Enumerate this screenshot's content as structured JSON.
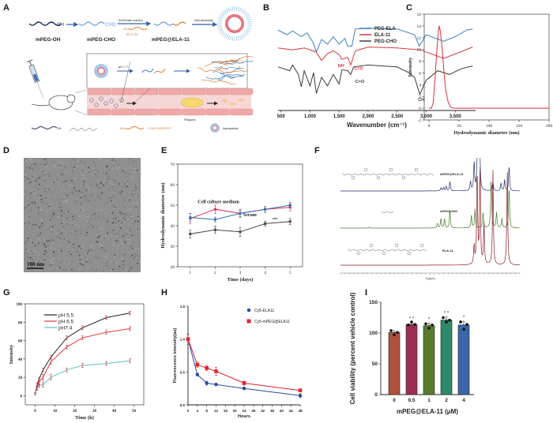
{
  "figure": {
    "panel_labels": [
      "A",
      "B",
      "C",
      "D",
      "E",
      "F",
      "G",
      "H",
      "I"
    ]
  },
  "panel_a": {
    "oh": "OH",
    "mpeg_oh": "mPEG-OH",
    "cho": "CHO",
    "mpeg_cho": "mPEG-CHO",
    "schiff": "Schiff base reaction",
    "nh2": "NH₂",
    "ela11": "ELA-11",
    "mpeg_ela11": "mPEG@ELA-11",
    "self_assembly": "Self-assembly",
    "ph": "pH < 7",
    "plaques": "Plaques",
    "legend_oh": "OH :",
    "legend_nh2": "NH₂",
    "legend_seq": ": CMPLHSRVPFP",
    "legend_np": ": Nanoparticle",
    "colors": {
      "peg": "#2f5fa8",
      "ela": "#e07a2e",
      "vessel": "#f2b8b8",
      "plaque": "#f5d76e"
    }
  },
  "panel_d": {
    "scale_bar": "100 nm"
  },
  "panel_f": {
    "xlabel": "δ (ppm)"
  },
  "chart_data": [
    {
      "panel": "B",
      "type": "line",
      "xlabel": "Wavenumber (cm⁻¹)",
      "xlim": [
        450,
        3850
      ],
      "ylim": [
        0,
        10
      ],
      "xticks": [
        500,
        1000,
        1500,
        2000,
        2500,
        3000,
        3500
      ],
      "xtick_labels": [
        "500",
        "1,000",
        "1,500",
        "2,000",
        "2,500",
        "3,000",
        "3,500"
      ],
      "legend_position": "top-right",
      "series": [
        {
          "name": "PEG-ELA",
          "color": "#3f7fc1",
          "points": [
            [
              450,
              8.5
            ],
            [
              600,
              8
            ],
            [
              700,
              8.4
            ],
            [
              850,
              7.8
            ],
            [
              950,
              8.2
            ],
            [
              1050,
              7.2
            ],
            [
              1110,
              6.2
            ],
            [
              1200,
              7.5
            ],
            [
              1300,
              7
            ],
            [
              1400,
              7.8
            ],
            [
              1500,
              7
            ],
            [
              1600,
              7.6
            ],
            [
              1650,
              6.8
            ],
            [
              1720,
              6.8
            ],
            [
              1780,
              8.6
            ],
            [
              2000,
              8.7
            ],
            [
              2500,
              8.6
            ],
            [
              2800,
              8.0
            ],
            [
              2880,
              6.8
            ],
            [
              3000,
              8
            ],
            [
              3300,
              7.3
            ],
            [
              3500,
              7.8
            ],
            [
              3700,
              8.5
            ],
            [
              3800,
              8.6
            ]
          ]
        },
        {
          "name": "ELA-11",
          "color": "#d9363e",
          "points": [
            [
              450,
              6.6
            ],
            [
              700,
              6.4
            ],
            [
              900,
              6.6
            ],
            [
              1100,
              6.2
            ],
            [
              1200,
              5.3
            ],
            [
              1300,
              6
            ],
            [
              1400,
              6.3
            ],
            [
              1500,
              5.9
            ],
            [
              1550,
              5.4
            ],
            [
              1650,
              5.6
            ],
            [
              1700,
              4.8
            ],
            [
              1780,
              6.3
            ],
            [
              2000,
              6.7
            ],
            [
              2500,
              6.6
            ],
            [
              2900,
              6.4
            ],
            [
              3300,
              5.5
            ],
            [
              3600,
              6.2
            ],
            [
              3800,
              6.7
            ]
          ]
        },
        {
          "name": "PEG-CHO",
          "color": "#3a3a3a",
          "points": [
            [
              450,
              4.6
            ],
            [
              650,
              4.2
            ],
            [
              700,
              4.8
            ],
            [
              800,
              3.8
            ],
            [
              850,
              2.5
            ],
            [
              900,
              4.2
            ],
            [
              1000,
              2.6
            ],
            [
              1060,
              4
            ],
            [
              1110,
              1.8
            ],
            [
              1200,
              3.5
            ],
            [
              1300,
              2.6
            ],
            [
              1400,
              3.8
            ],
            [
              1500,
              2.8
            ],
            [
              1550,
              4.3
            ],
            [
              1650,
              4.2
            ],
            [
              1700,
              3.8
            ],
            [
              1750,
              4.6
            ],
            [
              2000,
              4.8
            ],
            [
              2500,
              4.6
            ],
            [
              2700,
              4
            ],
            [
              2800,
              3.5
            ],
            [
              2890,
              1.7
            ],
            [
              3000,
              3.2
            ],
            [
              3200,
              4.2
            ],
            [
              3400,
              3.8
            ],
            [
              3600,
              4.4
            ],
            [
              3800,
              4.7
            ]
          ]
        }
      ],
      "annotations": [
        {
          "text": "NH",
          "x": 1480,
          "y": 4.6,
          "color": "#d9363e"
        },
        {
          "text": "C=O",
          "x": 1760,
          "y": 4.3,
          "color": "#d9363e"
        },
        {
          "text": "C=O",
          "x": 1780,
          "y": 2.9,
          "color": "#3a3a3a"
        },
        {
          "text": "CH",
          "x": 2860,
          "y": 1.0,
          "color": "#3a3a3a"
        }
      ]
    },
    {
      "panel": "C",
      "type": "line",
      "xlabel": "Hydrodynamic diameter (nm)",
      "ylabel": "Intensity",
      "xlim": [
        -8,
        200
      ],
      "ylim": [
        -2,
        16
      ],
      "xticks": [
        0,
        50,
        100,
        150,
        200
      ],
      "xtick_labels": [
        "0",
        "50",
        "100",
        "150",
        "200"
      ],
      "yticks": [
        -2,
        0,
        2,
        4,
        6,
        8,
        10,
        12,
        14,
        16
      ],
      "ytick_labels": [
        "-2",
        "0",
        "2",
        "4",
        "6",
        "8",
        "10",
        "12",
        "14",
        "16"
      ],
      "series": [
        {
          "color": "#e0303a",
          "points": [
            [
              0,
              0
            ],
            [
              4,
              0
            ],
            [
              7,
              1
            ],
            [
              10,
              5
            ],
            [
              13,
              10
            ],
            [
              16,
              13.5
            ],
            [
              17,
              14
            ],
            [
              19,
              13
            ],
            [
              22,
              10
            ],
            [
              25,
              6
            ],
            [
              28,
              3
            ],
            [
              32,
              1
            ],
            [
              36,
              0.2
            ],
            [
              42,
              0
            ],
            [
              100,
              0
            ],
            [
              200,
              0
            ]
          ]
        }
      ]
    },
    {
      "panel": "E",
      "type": "line",
      "xlabel": "Time (days)",
      "ylabel": "Hydrodynamic diameter (nm)",
      "xlim": [
        0.5,
        5.5
      ],
      "ylim": [
        20,
        70
      ],
      "xticks": [
        1,
        2,
        3,
        4,
        5
      ],
      "xtick_labels": [
        "1",
        "2",
        "3",
        "4",
        "5"
      ],
      "yticks": [
        20,
        30,
        40,
        50,
        60,
        70
      ],
      "ytick_labels": [
        "20",
        "30",
        "40",
        "50",
        "60",
        "70"
      ],
      "x": [
        1,
        2,
        3,
        4,
        5
      ],
      "series": [
        {
          "name": "Cell culture medium",
          "color": "#e0304a",
          "values": [
            43.5,
            48,
            46,
            48,
            49
          ],
          "errors": [
            2.5,
            2,
            2,
            1.5,
            1.8
          ],
          "label_at": [
            1.3,
            51
          ]
        },
        {
          "name": "Serum",
          "color": "#2f6fb8",
          "values": [
            44,
            43,
            46,
            48,
            50
          ],
          "errors": [
            2,
            1.2,
            1.5,
            1.5,
            1.5
          ],
          "label_at": [
            3.12,
            44.6
          ]
        },
        {
          "name": "PBS",
          "color": "#444444",
          "values": [
            36,
            38,
            37,
            41,
            42
          ],
          "errors": [
            2,
            1.8,
            2.2,
            1.2,
            1.5
          ],
          "label_at": [
            4.3,
            43
          ]
        }
      ]
    },
    {
      "panel": "G",
      "type": "line",
      "xlabel": "Time (h)",
      "ylabel": "Intensity",
      "xlim": [
        -5,
        55
      ],
      "ylim": [
        -10,
        100
      ],
      "xticks": [
        0,
        10,
        20,
        30,
        40,
        50
      ],
      "xtick_labels": [
        "0",
        "10",
        "20",
        "30",
        "40",
        "50"
      ],
      "yticks": [
        0,
        20,
        40,
        60,
        80,
        100
      ],
      "ytick_labels": [
        "0",
        "20",
        "40",
        "60",
        "80",
        "100"
      ],
      "legend_position": "top-left",
      "x": [
        0,
        1,
        2,
        4,
        8,
        16,
        24,
        36,
        48
      ],
      "series": [
        {
          "name": "pH 5.5",
          "color": "#222222",
          "values": [
            2,
            12,
            18,
            28,
            42,
            63,
            74,
            85,
            90
          ],
          "errors": [
            1,
            2,
            2,
            2,
            2,
            2,
            2,
            2,
            2
          ]
        },
        {
          "name": "pH 6.5",
          "color": "#e03a3a",
          "values": [
            2,
            10,
            15,
            20,
            37,
            53,
            63,
            69,
            73
          ],
          "errors": [
            1,
            4,
            3,
            3,
            3,
            2,
            2,
            2,
            2
          ]
        },
        {
          "name": "pH7.4",
          "color": "#5bc0c8",
          "values": [
            2,
            8,
            11,
            12,
            20,
            28,
            33,
            35,
            38
          ],
          "errors": [
            1,
            2,
            2,
            3,
            3,
            2,
            2,
            2,
            2
          ]
        }
      ]
    },
    {
      "panel": "H",
      "type": "line",
      "xlabel": "Hours",
      "ylabel": "Fluorescence intensity(au)",
      "xlim": [
        0,
        48
      ],
      "ylim": [
        0,
        1.5
      ],
      "xticks": [
        0,
        4,
        8,
        12,
        16,
        20,
        24,
        28,
        32,
        36,
        40,
        44,
        48
      ],
      "xtick_labels": [
        "0",
        "4",
        "8",
        "12",
        "16",
        "20",
        "24",
        "28",
        "32",
        "36",
        "40",
        "44",
        "48"
      ],
      "yticks": [
        0,
        0.5,
        1.0,
        1.5
      ],
      "ytick_labels": [
        "0.0",
        "0.5",
        "1.0",
        "1.5"
      ],
      "legend_position": "top-right",
      "x": [
        0,
        4,
        8,
        12,
        24,
        48
      ],
      "series": [
        {
          "name": "Cy5-ELA11",
          "color": "#2b4aa0",
          "marker": "circle",
          "values": [
            1.0,
            0.46,
            0.33,
            0.31,
            0.25,
            0.14
          ],
          "errors": [
            0.08,
            0.02,
            0.03,
            0.02,
            0.02,
            0.03
          ]
        },
        {
          "name": "Cy5-mPEG@ELA11",
          "color": "#e0262e",
          "marker": "square",
          "values": [
            1.0,
            0.61,
            0.56,
            0.51,
            0.33,
            0.22
          ],
          "errors": [
            0.06,
            0.04,
            0.04,
            0.06,
            0.03,
            0.02
          ]
        }
      ]
    },
    {
      "panel": "I",
      "type": "bar",
      "xlabel": "mPEG@ELA-11 (μM)",
      "ylabel": "Cell viability (percent vehicle control)",
      "ylim": [
        0,
        150
      ],
      "yticks": [
        0,
        50,
        100,
        150
      ],
      "ytick_labels": [
        "0",
        "50",
        "100",
        "150"
      ],
      "categories": [
        "0",
        "0.5",
        "1",
        "2",
        "4"
      ],
      "values": [
        101,
        114,
        112,
        121,
        113
      ],
      "errors": [
        3,
        3,
        4,
        5,
        6
      ],
      "replicates": [
        [
          104,
          97,
          101
        ],
        [
          113,
          118,
          114
        ],
        [
          115,
          108,
          113
        ],
        [
          125,
          118,
          121
        ],
        [
          118,
          106,
          114
        ]
      ],
      "significance": [
        "",
        "* *",
        "*",
        "* *",
        "*"
      ],
      "colors": [
        "#b0513c",
        "#9c2e55",
        "#5b7a2e",
        "#2e8a6a",
        "#3b66a8"
      ]
    },
    {
      "panel": "F",
      "type": "line",
      "xlabel": "δ (ppm)",
      "xlim": [
        10,
        0
      ],
      "series": [
        {
          "name": "mPEG@ELA-11",
          "color": "#23306f",
          "peaks": [
            [
              4.4,
              0.1
            ],
            [
              4.25,
              0.12
            ],
            [
              4.1,
              0.15
            ],
            [
              3.9,
              0.3
            ],
            [
              2.75,
              0.3
            ],
            [
              2.55,
              0.9
            ],
            [
              2.35,
              2.2
            ],
            [
              2.25,
              2.2
            ],
            [
              1.5,
              0.3
            ],
            [
              1.05,
              0.25
            ],
            [
              0.85,
              0.35
            ],
            [
              0.6,
              0.8
            ]
          ]
        },
        {
          "name": "mPEG-CHO",
          "color": "#3f7a2a",
          "peaks": [
            [
              8.4,
              0.03
            ],
            [
              4.6,
              0.15
            ],
            [
              4.4,
              0.3
            ],
            [
              4.2,
              0.3
            ],
            [
              3.9,
              0.6
            ],
            [
              2.7,
              0.4
            ],
            [
              2.5,
              0.6
            ],
            [
              2.05,
              0.5
            ],
            [
              1.6,
              1.6
            ],
            [
              1.3,
              0.5
            ],
            [
              1.0,
              0.3
            ],
            [
              0.6,
              1.3
            ]
          ]
        },
        {
          "name": "ELA-11",
          "color": "#8a1a22",
          "peaks": [
            [
              2.55,
              0.6
            ],
            [
              2.38,
              3
            ],
            [
              2.22,
              3
            ],
            [
              2.0,
              1.3
            ],
            [
              1.5,
              3
            ],
            [
              0.7,
              3
            ]
          ]
        }
      ]
    }
  ]
}
